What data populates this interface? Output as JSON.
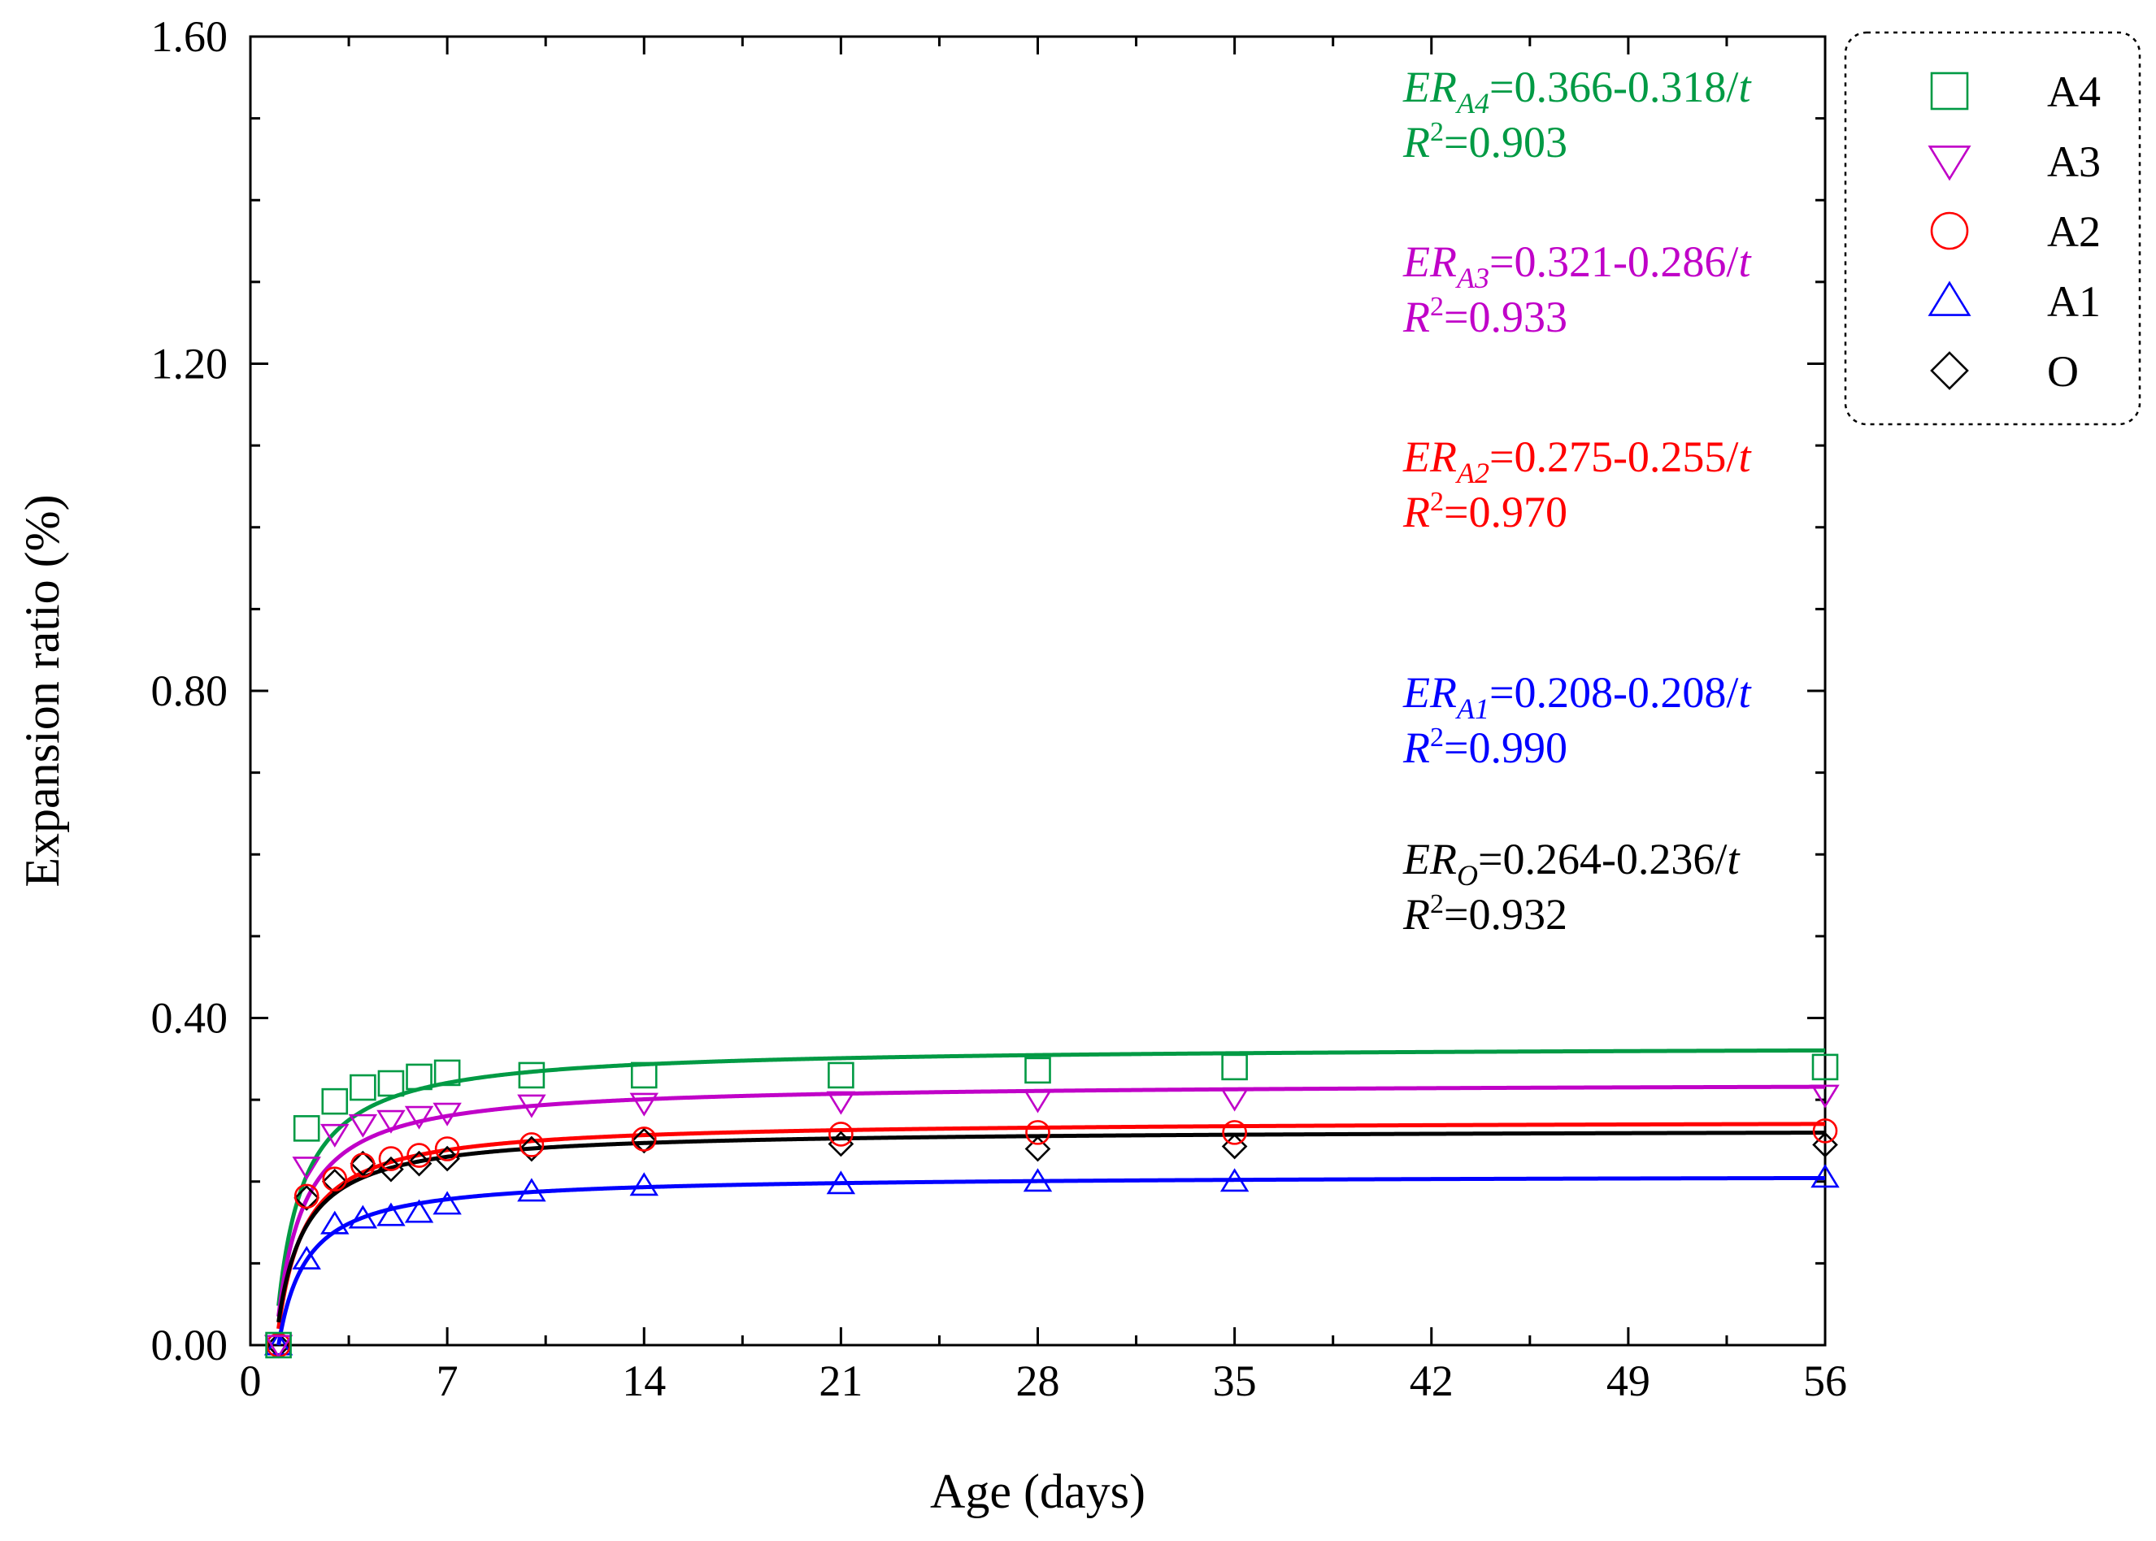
{
  "chart_data": {
    "type": "scatter",
    "title": "",
    "xlabel": "Age (days)",
    "ylabel": "Expansion ratio (%)",
    "xlim": [
      0,
      56
    ],
    "ylim": [
      0,
      1.6
    ],
    "xticks": [
      "0",
      "7",
      "14",
      "21",
      "28",
      "35",
      "42",
      "49",
      "56"
    ],
    "yticks": [
      "0.00",
      "0.40",
      "0.80",
      "1.20",
      "1.60"
    ],
    "x": [
      1,
      2,
      3,
      4,
      5,
      6,
      7,
      10,
      14,
      21,
      28,
      35,
      56
    ],
    "series": [
      {
        "name": "A4",
        "color": "#009a44",
        "marker": "square",
        "values": [
          0.0,
          0.265,
          0.298,
          0.315,
          0.32,
          0.328,
          0.333,
          0.33,
          0.33,
          0.33,
          0.336,
          0.34,
          0.34
        ],
        "fit": {
          "a": 0.366,
          "b": 0.318
        },
        "equation": {
          "prefix": "ER",
          "sub": "A4",
          "rhs": "=0.366-0.318/",
          "var": "t",
          "r2_label": "R",
          "r2_sup": "2",
          "r2_value": "=0.903"
        }
      },
      {
        "name": "A3",
        "color": "#c000c8",
        "marker": "triangle-down",
        "values": [
          0.0,
          0.218,
          0.258,
          0.27,
          0.275,
          0.28,
          0.284,
          0.294,
          0.296,
          0.298,
          0.3,
          0.302,
          0.306
        ],
        "fit": {
          "a": 0.321,
          "b": 0.286
        },
        "equation": {
          "prefix": "ER",
          "sub": "A3",
          "rhs": "=0.321-0.286/",
          "var": "t",
          "r2_label": "R",
          "r2_sup": "2",
          "r2_value": "=0.933"
        }
      },
      {
        "name": "A2",
        "color": "#ff0000",
        "marker": "circle",
        "values": [
          0.0,
          0.182,
          0.203,
          0.22,
          0.228,
          0.232,
          0.24,
          0.245,
          0.252,
          0.258,
          0.26,
          0.26,
          0.262
        ],
        "fit": {
          "a": 0.275,
          "b": 0.255
        },
        "equation": {
          "prefix": "ER",
          "sub": "A2",
          "rhs": "=0.275-0.255/",
          "var": "t",
          "r2_label": "R",
          "r2_sup": "2",
          "r2_value": "=0.970"
        }
      },
      {
        "name": "A1",
        "color": "#0000ff",
        "marker": "triangle-up",
        "values": [
          0.0,
          0.105,
          0.148,
          0.155,
          0.158,
          0.162,
          0.172,
          0.188,
          0.195,
          0.197,
          0.2,
          0.2,
          0.205
        ],
        "fit": {
          "a": 0.208,
          "b": 0.208
        },
        "equation": {
          "prefix": "ER",
          "sub": "A1",
          "rhs": "=0.208-0.208/",
          "var": "t",
          "r2_label": "R",
          "r2_sup": "2",
          "r2_value": "=0.990"
        }
      },
      {
        "name": "O",
        "color": "#000000",
        "marker": "diamond",
        "values": [
          0.0,
          0.18,
          0.2,
          0.222,
          0.215,
          0.222,
          0.228,
          0.24,
          0.25,
          0.246,
          0.24,
          0.243,
          0.245
        ],
        "fit": {
          "a": 0.264,
          "b": 0.236
        },
        "equation": {
          "prefix": "ER",
          "sub": "O",
          "rhs": "=0.264-0.236/",
          "var": "t",
          "r2_label": "R",
          "r2_sup": "2",
          "r2_value": "=0.932"
        }
      }
    ],
    "legend": {
      "placement": "top-right-outside",
      "entries": [
        "A4",
        "A3",
        "A2",
        "A1",
        "O"
      ]
    }
  }
}
